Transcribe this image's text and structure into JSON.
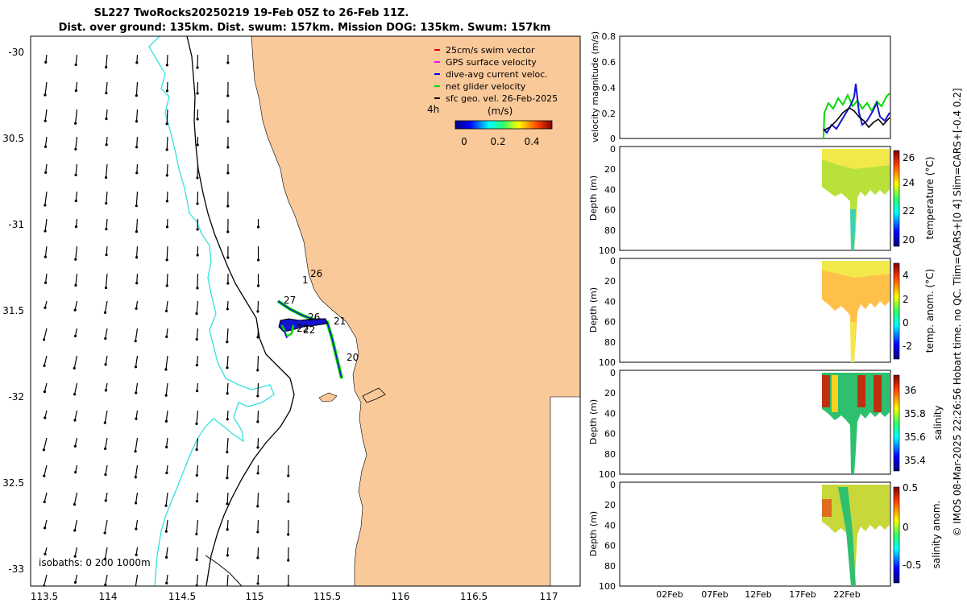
{
  "title": {
    "line1": "SL227 TwoRocks20250219 19-Feb 05Z to 26-Feb 11Z.",
    "line2": "Dist. over ground: 135km. Dist. swum: 157km. Mission DOG: 135km. Swum: 157km"
  },
  "map": {
    "lat_ticks": [
      "-30",
      "30.5",
      "-31",
      "31.5",
      "-32",
      "32.5",
      "-33"
    ],
    "lon_ticks": [
      "113.5",
      "114",
      "114.5",
      "115",
      "115.5",
      "116",
      "116.5",
      "117"
    ],
    "isobaths_label": "isobaths: 0   200  1000m",
    "time_label": "4h",
    "day_labels": [
      "1",
      "26",
      "27",
      "26",
      "21",
      "22",
      "22",
      "20"
    ],
    "colors": {
      "land": "#fac99a",
      "ocean": "#ffffff",
      "isobath_200": "#000000",
      "isobath_1000": "#33e0e0",
      "track": "#1414d0",
      "net": "#00dd00"
    }
  },
  "legend": {
    "entries": [
      {
        "label": "25cm/s swim vector",
        "color": "#e00000"
      },
      {
        "label": "GPS surface velocity",
        "color": "#ff00ff"
      },
      {
        "label": "dive-avg current veloc.",
        "color": "#0000ff"
      },
      {
        "label": "net glider velocity",
        "color": "#00dd00"
      },
      {
        "label": "sfc geo. vel. 26-Feb-2025",
        "color": "#000000"
      }
    ],
    "colorbar_title": "(m/s)",
    "colorbar_ticks": [
      "0",
      "0.2",
      "0.4"
    ]
  },
  "panels": {
    "velocity": {
      "ylabel": "velocity magnitude (m/s)",
      "yticks": [
        "0.8",
        "0.6",
        "0.4",
        "0.2",
        "0"
      ]
    },
    "temperature": {
      "ylabel": "Depth (m)",
      "cblabel": "temperature (°C)",
      "cbticks": [
        "26",
        "24",
        "22",
        "20"
      ]
    },
    "temp_anom": {
      "ylabel": "Depth (m)",
      "cblabel": "temp. anom. (°C)",
      "cbticks": [
        "4",
        "2",
        "0",
        "-2"
      ]
    },
    "salinity": {
      "ylabel": "Depth (m)",
      "cblabel": "salinity",
      "cbticks": [
        "36",
        "35.8",
        "35.6",
        "35.4"
      ]
    },
    "sal_anom": {
      "ylabel": "Depth (m)",
      "cblabel": "salinity anom.",
      "cbticks": [
        "0.5",
        "0",
        "-0.5"
      ]
    },
    "depth_ticks": [
      "0",
      "20",
      "40",
      "60",
      "80",
      "100"
    ],
    "xticks": [
      "02Feb",
      "07Feb",
      "12Feb",
      "17Feb",
      "22Feb"
    ]
  },
  "footer": "© IMOS 08-Mar-2025 22:26:56 Hobart time. no QC. Tlim=CARS+[0 4] Slim=CARS+[-0.4 0.2]"
}
